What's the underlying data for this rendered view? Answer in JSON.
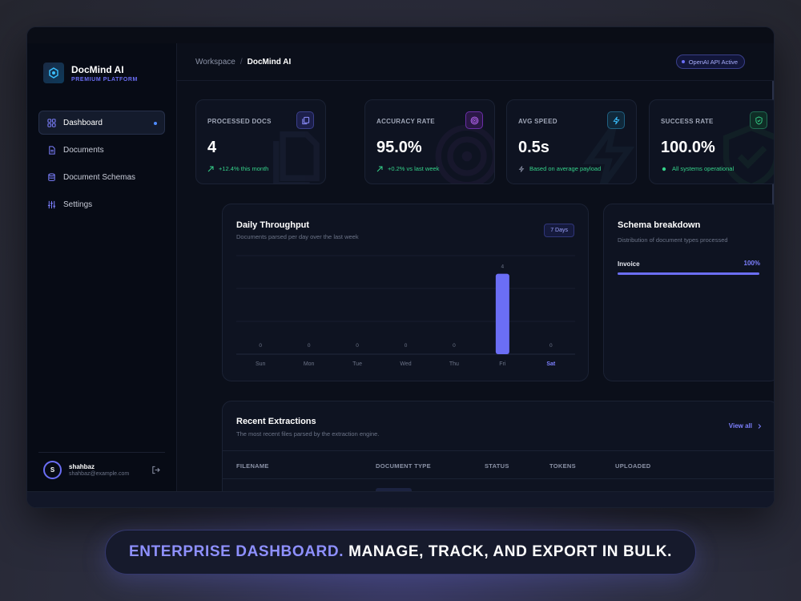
{
  "app": {
    "name": "DocMind AI",
    "subtitle": "PREMIUM PLATFORM"
  },
  "sidebar": {
    "items": [
      {
        "label": "Dashboard",
        "icon": "dashboard-icon",
        "active": true
      },
      {
        "label": "Documents",
        "icon": "document-icon",
        "active": false
      },
      {
        "label": "Document Schemas",
        "icon": "database-icon",
        "active": false
      },
      {
        "label": "Settings",
        "icon": "sliders-icon",
        "active": false
      }
    ],
    "user": {
      "initial": "S",
      "name": "shahbaz",
      "email": "shahbaz@example.com"
    }
  },
  "header": {
    "breadcrumb": {
      "root": "Workspace",
      "separator": "/",
      "current": "DocMind AI"
    },
    "status_badge": "OpenAI API Active"
  },
  "stats": [
    {
      "label": "PROCESSED DOCS",
      "value": "4",
      "sub": "+12.4% this month",
      "icon": "copy-icon",
      "color": "#6b6ef5"
    },
    {
      "label": "ACCURACY RATE",
      "value": "95.0%",
      "sub": "+0.2% vs last week",
      "icon": "target-icon",
      "color": "#b04cff"
    },
    {
      "label": "AVG SPEED",
      "value": "0.5s",
      "sub": "Based on average payload",
      "icon": "lightning-icon",
      "color": "#2ab8e6"
    },
    {
      "label": "SUCCESS RATE",
      "value": "100.0%",
      "sub": "All systems operational",
      "icon": "shield-check-icon",
      "color": "#35d28a"
    }
  ],
  "throughput": {
    "title": "Daily Throughput",
    "subtitle": "Documents parsed per day over the last week",
    "range": "7 Days"
  },
  "chart_data": {
    "type": "bar",
    "categories": [
      "Sun",
      "Mon",
      "Tue",
      "Wed",
      "Thu",
      "Fri",
      "Sat"
    ],
    "values": [
      0,
      0,
      0,
      0,
      0,
      4,
      0
    ],
    "highlight_category": "Sat",
    "bar_color": "#6b6ef5",
    "ylim": [
      0,
      4.9
    ],
    "grid": true
  },
  "breakdown": {
    "title": "Schema breakdown",
    "subtitle": "Distribution of document types processed",
    "items": [
      {
        "label": "Invoice",
        "percent_text": "100%",
        "fraction": 1.0
      }
    ]
  },
  "recent": {
    "title": "Recent Extractions",
    "subtitle": "The most recent files parsed by the extraction engine.",
    "view_all": "View all",
    "columns": [
      "FILENAME",
      "DOCUMENT TYPE",
      "STATUS",
      "TOKENS",
      "UPLOADED"
    ]
  },
  "tagline": {
    "accent": "ENTERPRISE DASHBOARD.",
    "rest": "MANAGE, TRACK, AND EXPORT IN BULK."
  }
}
